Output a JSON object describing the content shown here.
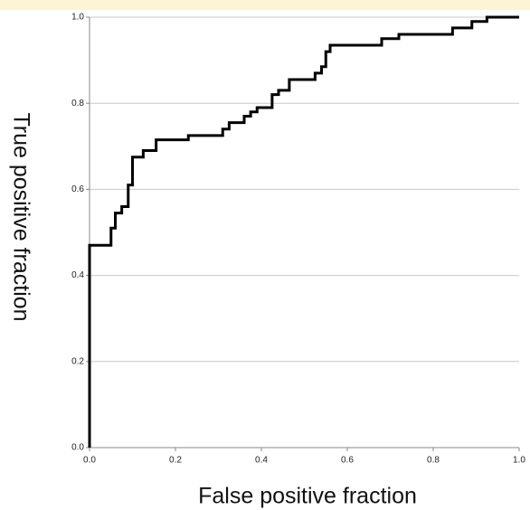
{
  "chart_data": {
    "type": "line",
    "x_label": "False positive fraction",
    "y_label": "True positive fraction",
    "x": [
      0,
      0,
      0.05,
      0.05,
      0.06,
      0.06,
      0.075,
      0.075,
      0.09,
      0.09,
      0.1,
      0.1,
      0.125,
      0.125,
      0.155,
      0.155,
      0.23,
      0.23,
      0.31,
      0.31,
      0.325,
      0.325,
      0.36,
      0.36,
      0.375,
      0.375,
      0.39,
      0.39,
      0.425,
      0.425,
      0.44,
      0.44,
      0.465,
      0.465,
      0.525,
      0.525,
      0.54,
      0.54,
      0.55,
      0.55,
      0.56,
      0.56,
      0.68,
      0.68,
      0.72,
      0.72,
      0.845,
      0.845,
      0.89,
      0.89,
      0.925,
      0.925,
      1
    ],
    "series": [
      {
        "color": "#000000",
        "values": [
          0,
          0.47,
          0.47,
          0.51,
          0.51,
          0.545,
          0.545,
          0.56,
          0.56,
          0.61,
          0.61,
          0.675,
          0.675,
          0.69,
          0.69,
          0.715,
          0.715,
          0.725,
          0.725,
          0.74,
          0.74,
          0.755,
          0.755,
          0.77,
          0.77,
          0.78,
          0.78,
          0.79,
          0.79,
          0.82,
          0.82,
          0.83,
          0.83,
          0.855,
          0.855,
          0.87,
          0.87,
          0.885,
          0.885,
          0.92,
          0.92,
          0.935,
          0.935,
          0.95,
          0.95,
          0.96,
          0.96,
          0.975,
          0.975,
          0.99,
          0.99,
          1,
          1
        ]
      }
    ],
    "xlim": [
      0,
      1
    ],
    "ylim": [
      0,
      1
    ],
    "xticks": [
      {
        "value": 0,
        "label": "0.0"
      },
      0.2,
      0.4,
      0.6,
      0.8,
      {
        "value": 1,
        "label": "1.0"
      }
    ],
    "yticks": [
      {
        "value": 0,
        "label": "0.0"
      },
      0.2,
      0.4,
      0.6,
      0.8,
      {
        "value": 1,
        "label": "1.0"
      }
    ],
    "grid": true
  }
}
